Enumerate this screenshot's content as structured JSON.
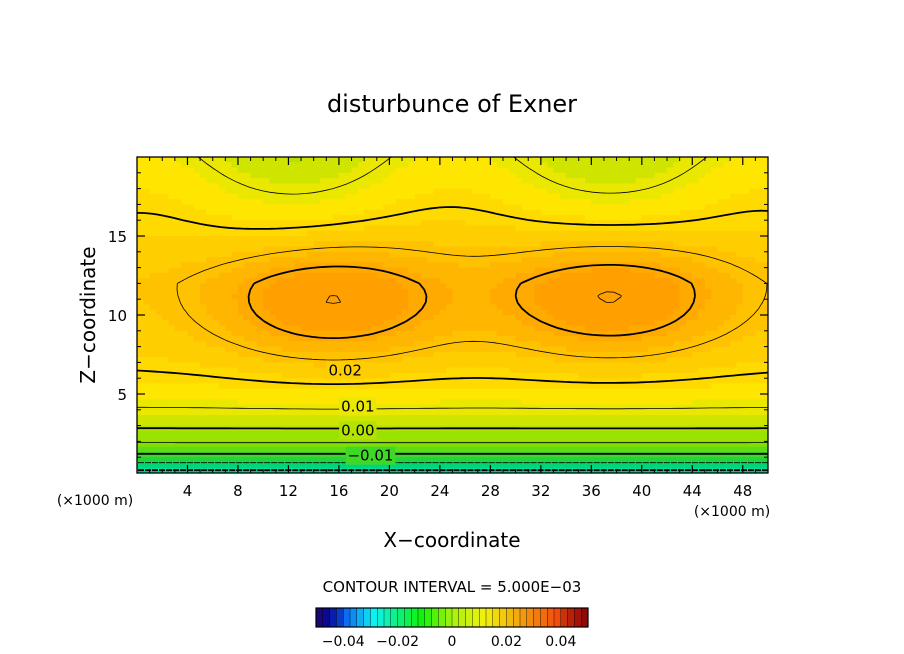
{
  "chart_data": {
    "type": "contour",
    "title": "disturbunce of Exner",
    "xlabel": "X−coordinate",
    "ylabel": "Z−coordinate",
    "x_unit_left": "(×1000 m)",
    "x_unit_right": "(×1000 m)",
    "xlim": [
      0,
      50
    ],
    "ylim": [
      0,
      20
    ],
    "x_ticks": [
      "4",
      "8",
      "12",
      "16",
      "20",
      "24",
      "28",
      "32",
      "36",
      "40",
      "44",
      "48"
    ],
    "y_ticks": [
      "5",
      "10",
      "15"
    ],
    "contour_interval_text": "CONTOUR INTERVAL = 5.000E−03",
    "contour_interval": 0.005,
    "contour_labels": [
      {
        "text": "0.02",
        "x": 16.5,
        "y": 6.5
      },
      {
        "text": "0.01",
        "x": 17.5,
        "y": 4.2
      },
      {
        "text": "0.00",
        "x": 17.5,
        "y": 2.7
      },
      {
        "text": "−0.01",
        "x": 18.5,
        "y": 1.1
      }
    ],
    "maxima": [
      {
        "x": 15.5,
        "y": 10.8,
        "approx_value": 0.033
      },
      {
        "x": 37.5,
        "y": 11.0,
        "approx_value": 0.034
      }
    ],
    "colorbar": {
      "range": [
        -0.05,
        0.05
      ],
      "tick_labels": [
        "−0.04",
        "−0.02",
        "0",
        "0.02",
        "0.04"
      ],
      "tick_values": [
        -0.04,
        -0.02,
        0,
        0.02,
        0.04
      ]
    },
    "colors": {
      "min": "#00e8e8",
      "low": "#00d050",
      "zero": "#80e000",
      "mid": "#ffe800",
      "high": "#ffa000"
    }
  }
}
